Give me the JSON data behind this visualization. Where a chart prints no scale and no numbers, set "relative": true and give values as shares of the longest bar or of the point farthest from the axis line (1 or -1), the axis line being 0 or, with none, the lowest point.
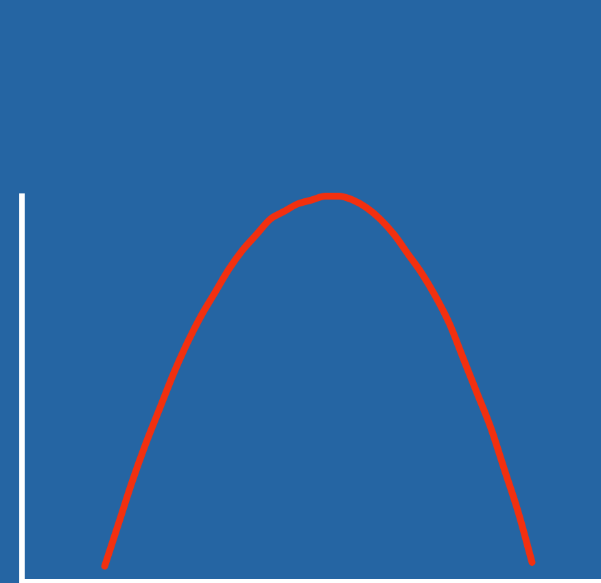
{
  "chart_data": {
    "type": "line",
    "relative": true,
    "color": "#f2300f",
    "grid": false,
    "legend": false,
    "marker": "none",
    "line_style": "solid",
    "categories": [
      null,
      null,
      null,
      null,
      null,
      null,
      null,
      null,
      null,
      null,
      null,
      null,
      null,
      null,
      null,
      null,
      null,
      null,
      null,
      null,
      null,
      null,
      null,
      null,
      null,
      null,
      null,
      null,
      null,
      null,
      null,
      null,
      null,
      null,
      null,
      null,
      null,
      null,
      null,
      null,
      null,
      null,
      null
    ],
    "values": [
      null,
      null,
      null,
      null,
      null,
      null,
      0.04,
      0.15,
      0.26,
      0.36,
      0.45,
      0.54,
      0.62,
      0.69,
      0.75,
      0.81,
      0.86,
      0.9,
      0.94,
      0.96,
      0.98,
      0.99,
      1.0,
      1.0,
      0.99,
      0.97,
      0.94,
      0.9,
      0.85,
      0.8,
      0.74,
      0.67,
      0.58,
      0.49,
      0.4,
      0.29,
      0.18,
      0.05,
      null,
      null,
      null,
      null,
      null
    ]
  }
}
